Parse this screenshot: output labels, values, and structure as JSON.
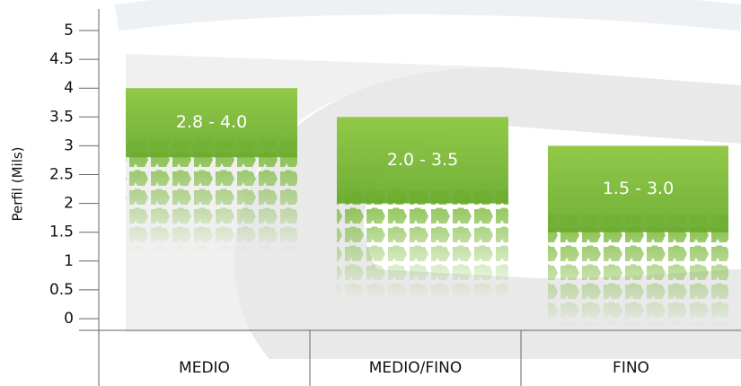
{
  "chart_data": {
    "type": "range-bar",
    "y_label": "Perfil (Mils)",
    "categories": [
      "MEDIO",
      "MEDIO/FINO",
      "FINO"
    ],
    "lows": [
      2.8,
      2.0,
      1.5
    ],
    "highs": [
      4.0,
      3.5,
      3.0
    ],
    "value_labels": [
      "2.8 - 4.0",
      "2.0 - 3.5",
      "1.5 - 3.0"
    ],
    "color": "#7cba3a",
    "ylim": [
      0,
      5
    ],
    "yticks": [
      0,
      0.5,
      1,
      1.5,
      2,
      2.5,
      3,
      3.5,
      4,
      4.5,
      5
    ]
  }
}
